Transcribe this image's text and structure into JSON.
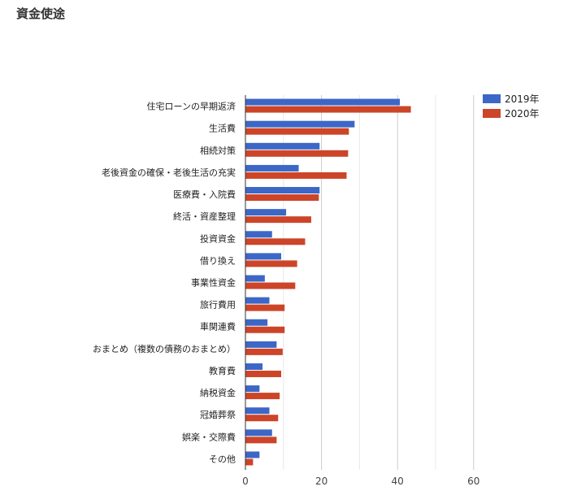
{
  "title": "資金使途",
  "chart_data": {
    "type": "bar",
    "orientation": "horizontal",
    "categories": [
      "住宅ローンの早期返済",
      "生活費",
      "相続対策",
      "老後資金の確保・老後生活の充実",
      "医療費・入院費",
      "終活・資産整理",
      "投資資金",
      "借り換え",
      "事業性資金",
      "旅行費用",
      "車関連費",
      "おまとめ（複数の債務のおまとめ）",
      "教育費",
      "納税資金",
      "冠婚葬祭",
      "娯楽・交際費",
      "その他"
    ],
    "series": [
      {
        "name": "2019年",
        "color": "#3d67c6",
        "values": [
          40.6,
          28.7,
          19.5,
          14.0,
          19.5,
          10.7,
          7.0,
          9.4,
          5.1,
          6.3,
          5.8,
          8.2,
          4.5,
          3.7,
          6.3,
          7.0,
          3.7
        ]
      },
      {
        "name": "2020年",
        "color": "#cc4529",
        "values": [
          43.5,
          27.2,
          27.0,
          26.6,
          19.3,
          17.3,
          15.7,
          13.6,
          13.1,
          10.3,
          10.3,
          9.8,
          9.4,
          9.0,
          8.6,
          8.2,
          2.0
        ]
      }
    ],
    "xlim": [
      0,
      60
    ],
    "xticks": [
      "0",
      "20",
      "40",
      "60"
    ],
    "grid": true,
    "legend": "top-right"
  }
}
